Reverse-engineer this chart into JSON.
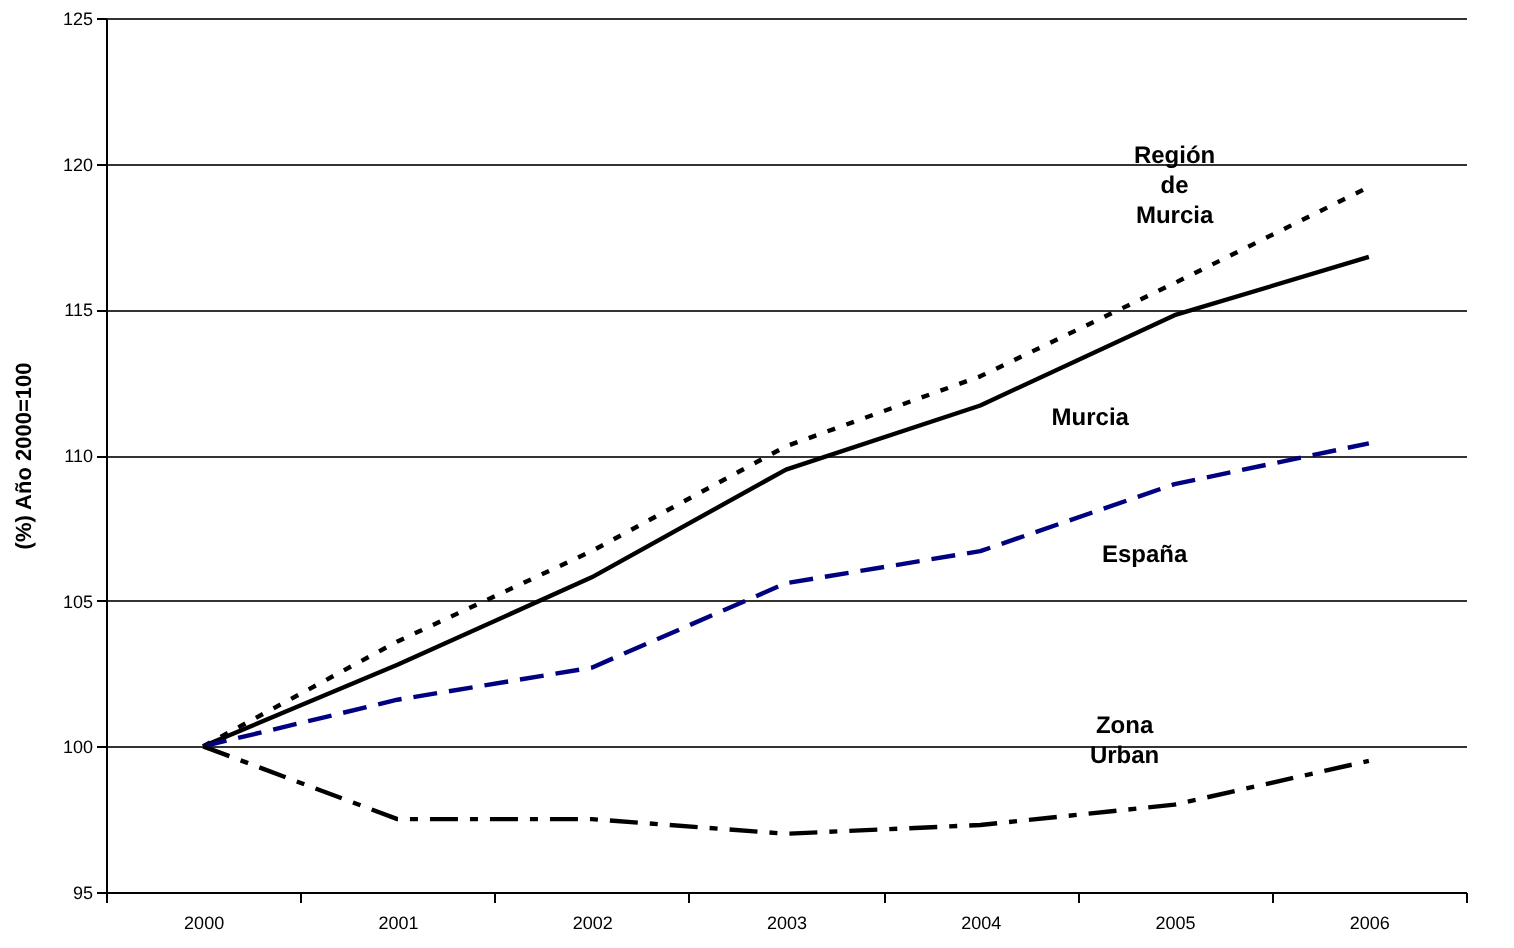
{
  "chart_data": {
    "type": "line",
    "ylabel": "(%) Año 2000=100",
    "categories": [
      "2000",
      "2001",
      "2002",
      "2003",
      "2004",
      "2005",
      "2006"
    ],
    "series": [
      {
        "name": "Región\nde\nMurcia",
        "color": "#000000",
        "line_style": "dotted",
        "values": [
          100,
          103.6,
          106.7,
          110.3,
          112.7,
          115.9,
          119.2
        ]
      },
      {
        "name": "Murcia",
        "color": "#000000",
        "line_style": "solid",
        "values": [
          100,
          102.8,
          105.8,
          109.5,
          111.7,
          114.8,
          116.8
        ]
      },
      {
        "name": "España",
        "color": "#000080",
        "line_style": "dashed",
        "values": [
          100,
          101.6,
          102.7,
          105.6,
          106.7,
          109.0,
          110.4
        ]
      },
      {
        "name": "Zona\nUrban",
        "color": "#000000",
        "line_style": "dashdot",
        "values": [
          100,
          97.5,
          97.5,
          97.0,
          97.3,
          98.0,
          99.5
        ]
      }
    ],
    "ylim": [
      95,
      125
    ],
    "yticks": [
      95,
      100,
      105,
      110,
      115,
      120,
      125
    ],
    "grid": "y",
    "marker": "none"
  }
}
